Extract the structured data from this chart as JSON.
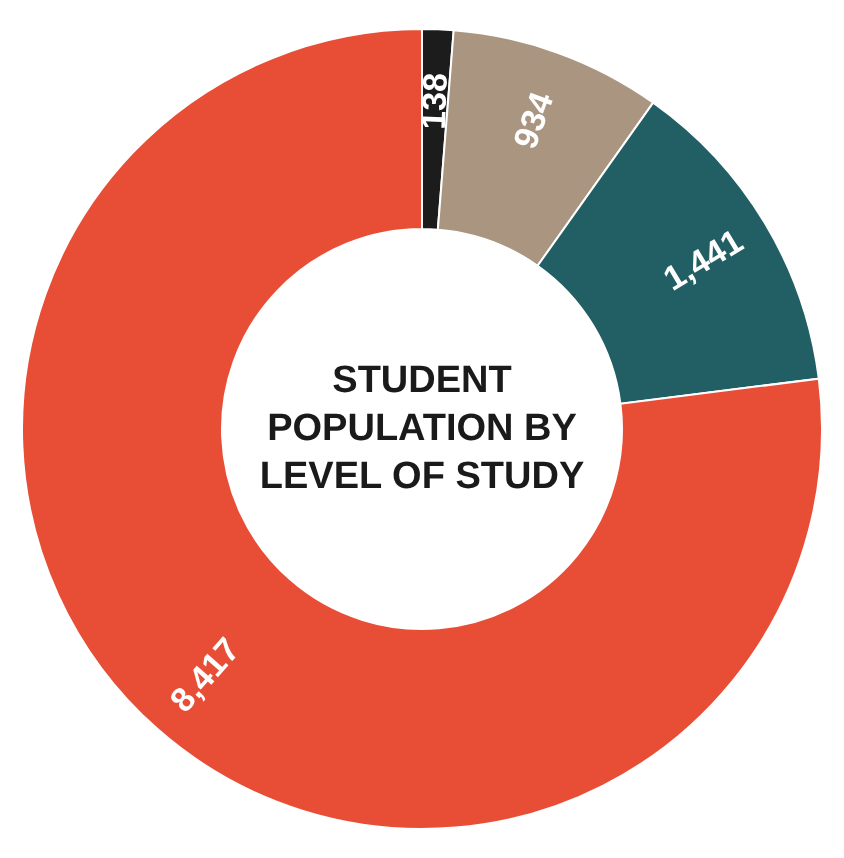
{
  "chart_data": {
    "type": "donut",
    "title": "STUDENT POPULATION BY LEVEL OF STUDY",
    "categories": [
      null,
      null,
      null,
      null
    ],
    "values": [
      138,
      934,
      1441,
      8417
    ],
    "colors": [
      "#1c1c1c",
      "#a99580",
      "#215f64",
      "#e84d35"
    ],
    "value_labels": [
      "138",
      "934",
      "1,441",
      "8,417"
    ]
  }
}
